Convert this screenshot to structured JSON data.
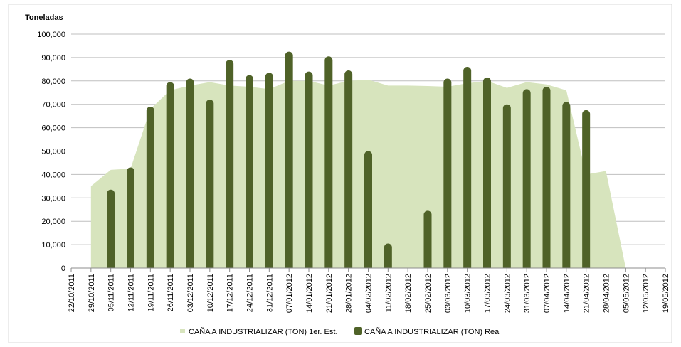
{
  "chart_data": {
    "type": "bar-area",
    "y_axis_title": "Toneladas",
    "categories": [
      "22/10/2011",
      "29/10/2011",
      "05/11/2011",
      "12/11/2011",
      "19/11/2011",
      "26/11/2011",
      "03/12/2011",
      "10/12/2011",
      "17/12/2011",
      "24/12/2011",
      "31/12/2011",
      "07/01/2012",
      "14/01/2012",
      "21/01/2012",
      "28/01/2012",
      "04/02/2012",
      "11/02/2012",
      "18/02/2012",
      "25/02/2012",
      "03/03/2012",
      "10/03/2012",
      "17/03/2012",
      "24/03/2012",
      "31/03/2012",
      "07/04/2012",
      "14/04/2012",
      "21/04/2012",
      "28/04/2012",
      "05/05/2012",
      "12/05/2012",
      "19/05/2012"
    ],
    "series": [
      {
        "name": "CAÑA A INDUSTRIALIZAR (TON) 1er. Est.",
        "kind": "area",
        "color": "#d7e4bd",
        "values": [
          null,
          35000,
          42000,
          42500,
          68000,
          76000,
          78000,
          79500,
          78000,
          77500,
          76500,
          80000,
          80000,
          78000,
          80000,
          80500,
          78000,
          78000,
          77800,
          77500,
          79000,
          80000,
          77000,
          79500,
          78500,
          76000,
          40000,
          41500,
          0,
          null,
          null
        ]
      },
      {
        "name": "CAÑA A INDUSTRIALIZAR (TON) Real",
        "kind": "bar",
        "color": "#4f6228",
        "values": [
          null,
          null,
          33500,
          43000,
          69000,
          79500,
          81000,
          72000,
          89000,
          82500,
          83500,
          92500,
          84000,
          90500,
          84500,
          50000,
          10500,
          null,
          24500,
          81000,
          86000,
          81500,
          70000,
          76500,
          77500,
          71000,
          67500,
          null,
          null,
          null,
          null
        ]
      }
    ],
    "ylim": [
      0,
      100000
    ],
    "yticks": [
      0,
      {
        "value": 10000,
        "label": "10,000"
      },
      {
        "value": 20000,
        "label": "20,000"
      },
      {
        "value": 30000,
        "label": "30,000"
      },
      {
        "value": 40000,
        "label": "40,000"
      },
      {
        "value": 50000,
        "label": "50,000"
      },
      {
        "value": 60000,
        "label": "60,000"
      },
      {
        "value": 70000,
        "label": "70,000"
      },
      {
        "value": 80000,
        "label": "80,000"
      },
      {
        "value": 90000,
        "label": "90,000"
      },
      {
        "value": 100000,
        "label": "100,000"
      }
    ],
    "grid": true,
    "legend": "bottom"
  }
}
